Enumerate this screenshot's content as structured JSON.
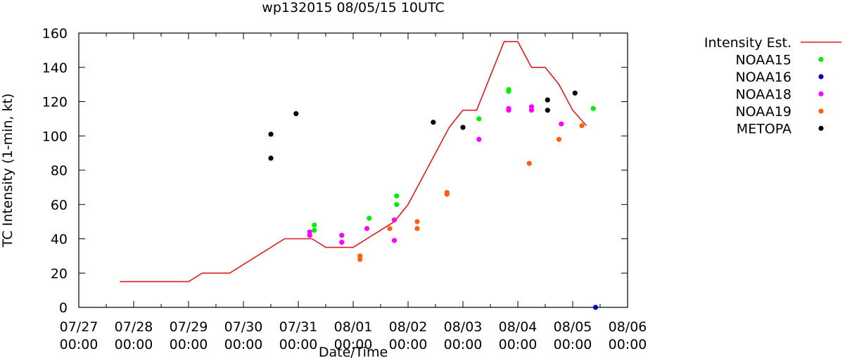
{
  "chart_data": {
    "type": "scatter",
    "title": "wp132015 08/05/15 10UTC",
    "xlabel": "Date/Time",
    "ylabel": "TC Intensity (1-min, kt)",
    "ylim": [
      0,
      160
    ],
    "yticks": [
      0,
      20,
      40,
      60,
      80,
      100,
      120,
      140,
      160
    ],
    "xlim": [
      "2015-07-27 00:00",
      "2015-08-06 00:00"
    ],
    "xticks": [
      {
        "date": "07/27",
        "time": "00:00"
      },
      {
        "date": "07/28",
        "time": "00:00"
      },
      {
        "date": "07/29",
        "time": "00:00"
      },
      {
        "date": "07/30",
        "time": "00:00"
      },
      {
        "date": "07/31",
        "time": "00:00"
      },
      {
        "date": "08/01",
        "time": "00:00"
      },
      {
        "date": "08/02",
        "time": "00:00"
      },
      {
        "date": "08/03",
        "time": "00:00"
      },
      {
        "date": "08/04",
        "time": "00:00"
      },
      {
        "date": "08/05",
        "time": "00:00"
      },
      {
        "date": "08/06",
        "time": "00:00"
      }
    ],
    "grid": false,
    "legend_position": "outside-right",
    "series": [
      {
        "name": "Intensity Est.",
        "kind": "line",
        "color": "#e41a1c",
        "points": [
          [
            "2015-07-27 18:00",
            15
          ],
          [
            "2015-07-29 00:00",
            15
          ],
          [
            "2015-07-29 06:00",
            20
          ],
          [
            "2015-07-29 18:00",
            20
          ],
          [
            "2015-07-30 18:00",
            40
          ],
          [
            "2015-07-31 06:00",
            40
          ],
          [
            "2015-07-31 12:00",
            35
          ],
          [
            "2015-08-01 00:00",
            35
          ],
          [
            "2015-08-01 18:00",
            50
          ],
          [
            "2015-08-02 00:00",
            60
          ],
          [
            "2015-08-02 18:00",
            105
          ],
          [
            "2015-08-03 00:00",
            115
          ],
          [
            "2015-08-03 06:00",
            115
          ],
          [
            "2015-08-03 18:00",
            155
          ],
          [
            "2015-08-04 00:00",
            155
          ],
          [
            "2015-08-04 06:00",
            140
          ],
          [
            "2015-08-04 12:00",
            140
          ],
          [
            "2015-08-04 18:00",
            130
          ],
          [
            "2015-08-05 00:00",
            115
          ],
          [
            "2015-08-05 06:00",
            106
          ]
        ]
      },
      {
        "name": "NOAA15",
        "kind": "points",
        "color": "#00ee00",
        "points": [
          [
            "2015-07-31 07:00",
            48
          ],
          [
            "2015-07-31 07:00",
            45
          ],
          [
            "2015-07-31 19:00",
            42
          ],
          [
            "2015-08-01 07:00",
            52
          ],
          [
            "2015-08-01 19:00",
            65
          ],
          [
            "2015-08-01 19:00",
            60
          ],
          [
            "2015-08-03 07:00",
            110
          ],
          [
            "2015-08-03 20:00",
            127
          ],
          [
            "2015-08-03 20:00",
            126
          ],
          [
            "2015-08-05 09:00",
            116
          ]
        ]
      },
      {
        "name": "NOAA16",
        "kind": "points",
        "color": "#0000cc",
        "points": [
          [
            "2015-08-05 10:00",
            0
          ]
        ]
      },
      {
        "name": "NOAA18",
        "kind": "points",
        "color": "#ff00ff",
        "points": [
          [
            "2015-07-31 05:00",
            44
          ],
          [
            "2015-07-31 05:00",
            42
          ],
          [
            "2015-07-31 19:00",
            42
          ],
          [
            "2015-07-31 19:00",
            38
          ],
          [
            "2015-08-01 06:00",
            46
          ],
          [
            "2015-08-01 18:00",
            51
          ],
          [
            "2015-08-01 18:00",
            39
          ],
          [
            "2015-08-03 07:00",
            98
          ],
          [
            "2015-08-03 20:00",
            116
          ],
          [
            "2015-08-03 20:00",
            115
          ],
          [
            "2015-08-04 06:00",
            117
          ],
          [
            "2015-08-04 06:00",
            115
          ],
          [
            "2015-08-04 19:00",
            107
          ]
        ]
      },
      {
        "name": "NOAA19",
        "kind": "points",
        "color": "#ff6010",
        "points": [
          [
            "2015-08-01 03:00",
            30
          ],
          [
            "2015-08-01 03:00",
            28
          ],
          [
            "2015-08-01 16:00",
            46
          ],
          [
            "2015-08-02 04:00",
            50
          ],
          [
            "2015-08-02 04:00",
            46
          ],
          [
            "2015-08-02 17:00",
            67
          ],
          [
            "2015-08-02 17:00",
            66
          ],
          [
            "2015-08-04 05:00",
            84
          ],
          [
            "2015-08-04 18:00",
            98
          ],
          [
            "2015-08-05 04:00",
            106
          ]
        ]
      },
      {
        "name": "METOPA",
        "kind": "points",
        "color": "#000000",
        "points": [
          [
            "2015-07-30 12:00",
            101
          ],
          [
            "2015-07-30 12:00",
            87
          ],
          [
            "2015-07-30 23:00",
            113
          ],
          [
            "2015-08-02 11:00",
            108
          ],
          [
            "2015-08-03 00:00",
            105
          ],
          [
            "2015-08-04 13:00",
            121
          ],
          [
            "2015-08-04 13:00",
            115
          ],
          [
            "2015-08-05 01:00",
            125
          ]
        ]
      }
    ]
  }
}
